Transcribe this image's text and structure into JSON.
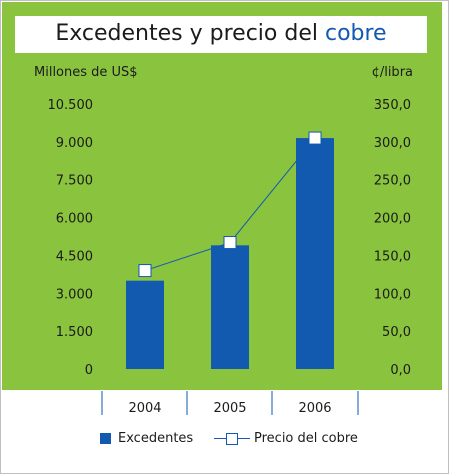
{
  "chart_data": {
    "type": "bar+line",
    "title_main": "Excedentes y precio del ",
    "title_highlight": "cobre",
    "ylabel_left": "Millones de US$",
    "ylabel_right": "¢/libra",
    "categories": [
      "2004",
      "2005",
      "2006"
    ],
    "y_left_ticks": [
      "10.500",
      "9.000",
      "7.500",
      "6.000",
      "4.500",
      "3.000",
      "1.500",
      "0"
    ],
    "y_right_ticks": [
      "350,0",
      "300,0",
      "250,0",
      "200,0",
      "150,0",
      "100,0",
      "50,0",
      "0,0"
    ],
    "ylim_left": [
      0,
      10500
    ],
    "ylim_right": [
      0,
      350
    ],
    "series": [
      {
        "name": "Excedentes",
        "type": "bar",
        "axis": "left",
        "values": [
          3500,
          4900,
          9150
        ]
      },
      {
        "name": "Precio del cobre",
        "type": "line",
        "axis": "right",
        "values": [
          130,
          167,
          305
        ]
      }
    ],
    "colors": {
      "bar": "#1259b0",
      "line": "#1259b0",
      "panel": "#8ac43f"
    },
    "legend_position": "bottom"
  }
}
